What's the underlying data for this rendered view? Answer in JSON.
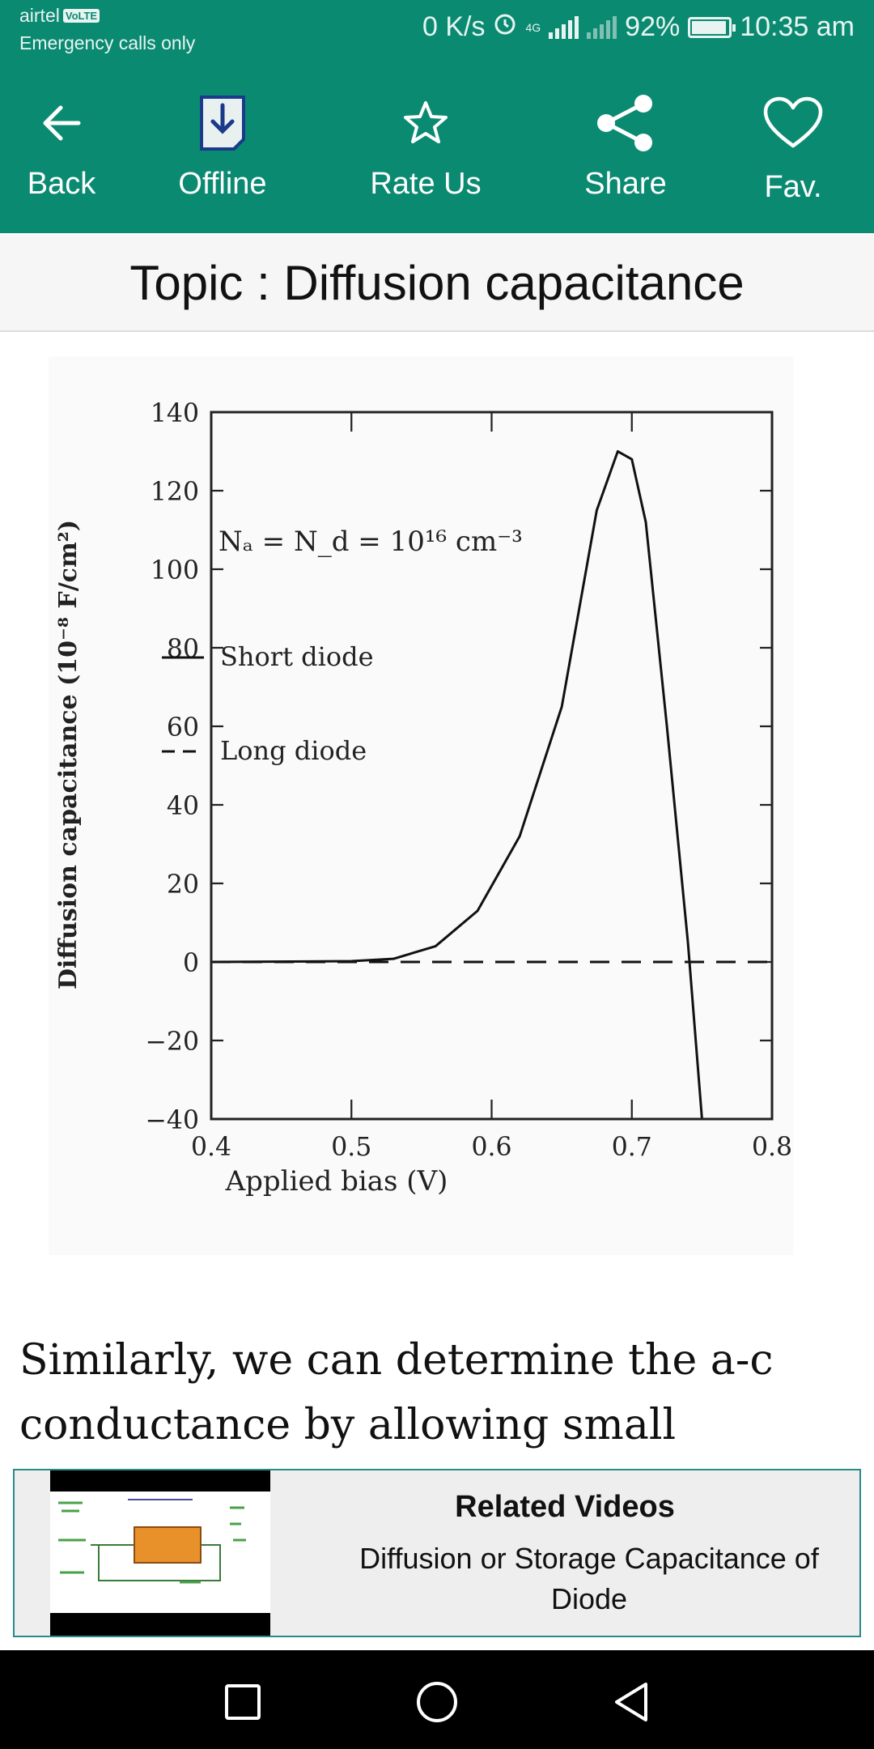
{
  "status_bar": {
    "carrier": "airtel",
    "volte": "VoLTE",
    "emergency": "Emergency calls only",
    "speed": "0 K/s",
    "network": "4G",
    "battery": "92%",
    "time": "10:35 am"
  },
  "toolbar": {
    "back_label": "Back",
    "offline_label": "Offline",
    "rate_label": "Rate Us",
    "share_label": "Share",
    "fav_label": "Fav."
  },
  "topic": {
    "title": "Topic : Diffusion capacitance"
  },
  "chart_data": {
    "type": "line",
    "xlabel": "Applied bias (V)",
    "ylabel": "Diffusion capacitance (10⁻⁸ F/cm²)",
    "xlim": [
      0.4,
      0.8
    ],
    "ylim": [
      -40,
      140
    ],
    "x_ticks": [
      "0.4",
      "0.5",
      "0.6",
      "0.7",
      "0.8"
    ],
    "y_ticks": [
      "140",
      "120",
      "100",
      "80",
      "60",
      "40",
      "20",
      "0",
      "−20",
      "−40"
    ],
    "annotation": "Nₐ = N_d = 10¹⁶ cm⁻³",
    "legend_position": "upper-left",
    "series": [
      {
        "name": "Short diode",
        "style": "solid",
        "points": [
          [
            0.4,
            0
          ],
          [
            0.5,
            0.2
          ],
          [
            0.53,
            0.8
          ],
          [
            0.56,
            4
          ],
          [
            0.59,
            13
          ],
          [
            0.62,
            32
          ],
          [
            0.65,
            65
          ],
          [
            0.675,
            115
          ],
          [
            0.69,
            130
          ],
          [
            0.7,
            128
          ],
          [
            0.71,
            112
          ],
          [
            0.725,
            60
          ],
          [
            0.74,
            5
          ],
          [
            0.75,
            -40
          ]
        ]
      },
      {
        "name": "Long diode",
        "style": "dashed",
        "points": [
          [
            0.4,
            0
          ],
          [
            0.8,
            0
          ]
        ]
      }
    ]
  },
  "content": {
    "paragraph": "Similarly, we can determine the a-c conductance by allowing small changes"
  },
  "related": {
    "title": "Related Videos",
    "video_title": "Diffusion  or Storage Capacitance of Diode"
  }
}
